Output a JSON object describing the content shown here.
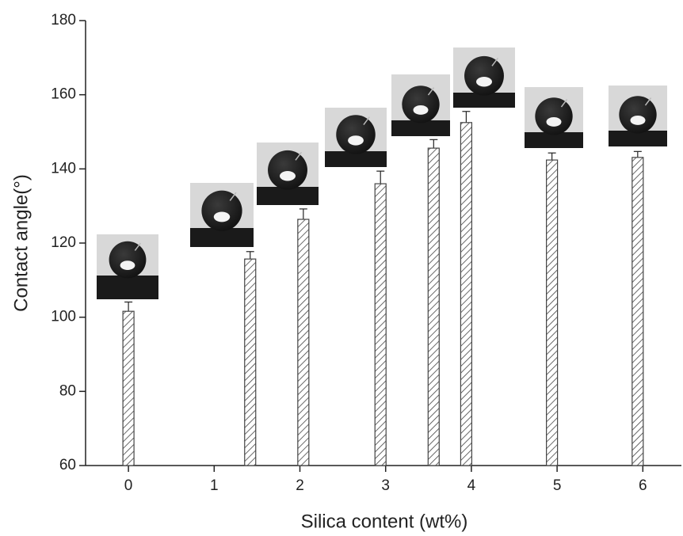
{
  "chart_data": {
    "type": "bar",
    "xlabel": "Silica content (wt%)",
    "ylabel": "Contact angle(°)",
    "x": [
      0,
      1.42,
      2.04,
      2.94,
      3.56,
      3.94,
      4.94,
      5.94
    ],
    "values": [
      101.6,
      115.7,
      126.4,
      136.0,
      145.6,
      152.5,
      142.4,
      143.1
    ],
    "errors": [
      2.5,
      2.0,
      2.8,
      3.4,
      2.3,
      3.0,
      1.9,
      1.6
    ],
    "color": "#444444",
    "xlim": [
      -0.5,
      6.45
    ],
    "ylim": [
      60,
      180
    ],
    "xticks": [
      0,
      1,
      2,
      3,
      4,
      5,
      6
    ],
    "yticks": [
      60,
      80,
      100,
      120,
      140,
      160,
      180
    ]
  }
}
